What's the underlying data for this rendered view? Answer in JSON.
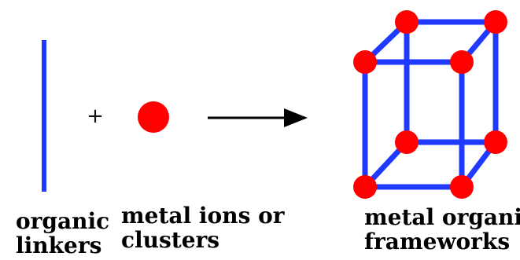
{
  "operators": {
    "plus": "+"
  },
  "labels": {
    "organic_linkers_line1": "organic",
    "organic_linkers_line2": "linkers",
    "metal_ions_line1": "metal ions or",
    "metal_ions_line2": "clusters",
    "framework_line1": "metal organic",
    "framework_line2": "frameworks"
  },
  "colors": {
    "linker": "#1f39ff",
    "metal_node": "#ff0000",
    "arrow": "#000000",
    "text": "#000000"
  }
}
